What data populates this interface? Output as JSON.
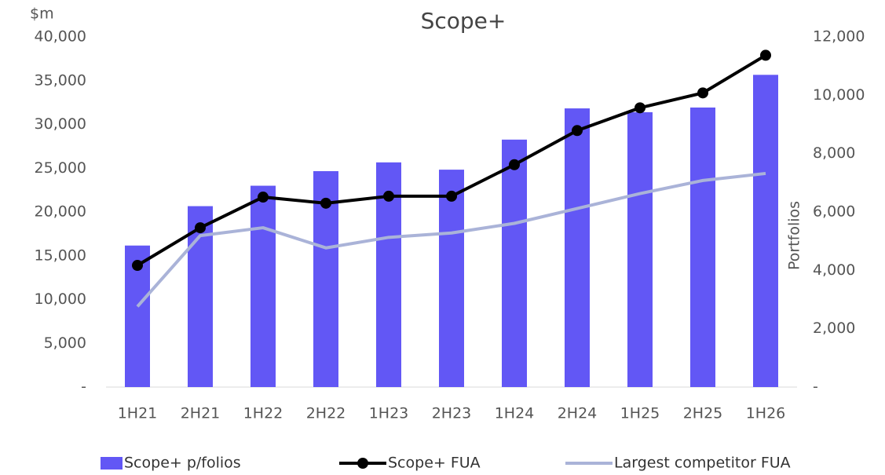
{
  "chart_data": {
    "type": "bar_line",
    "title": "Scope+",
    "y_label": "$m",
    "y2_label": "Portfolios",
    "categories": [
      "1H21",
      "2H21",
      "1H22",
      "2H22",
      "1H23",
      "2H23",
      "1H24",
      "2H24",
      "1H25",
      "2H25",
      "1H26"
    ],
    "series": [
      {
        "name": "Scope+ p/folios",
        "type": "bar",
        "axis": "y2",
        "color": "#6257f5",
        "values": [
          4850,
          6200,
          6900,
          7400,
          7700,
          7450,
          8480,
          9550,
          9420,
          9580,
          10700
        ]
      },
      {
        "name": "Scope+ FUA",
        "type": "line",
        "color": "#000000",
        "marker": true,
        "values": [
          13900,
          18200,
          21700,
          21000,
          21800,
          21800,
          25400,
          29300,
          31900,
          33600,
          37900
        ]
      },
      {
        "name": "Largest competitor FUA",
        "type": "line",
        "color": "#aab3d8",
        "marker": false,
        "values": [
          9200,
          17300,
          18200,
          15900,
          17100,
          17600,
          18700,
          20400,
          22100,
          23600,
          24400
        ]
      }
    ],
    "ylim": [
      0,
      40000
    ],
    "yticks": [
      {
        "value": 0,
        "label": "-"
      },
      {
        "value": 5000,
        "label": "5,000"
      },
      {
        "value": 10000,
        "label": "10,000"
      },
      {
        "value": 15000,
        "label": "15,000"
      },
      {
        "value": 20000,
        "label": "20,000"
      },
      {
        "value": 25000,
        "label": "25,000"
      },
      {
        "value": 30000,
        "label": "30,000"
      },
      {
        "value": 35000,
        "label": "35,000"
      },
      {
        "value": 40000,
        "label": "40,000"
      }
    ],
    "y2lim": [
      0,
      12000
    ],
    "y2ticks": [
      {
        "value": 0,
        "label": "-"
      },
      {
        "value": 2000,
        "label": "2,000"
      },
      {
        "value": 4000,
        "label": "4,000"
      },
      {
        "value": 6000,
        "label": "6,000"
      },
      {
        "value": 8000,
        "label": "8,000"
      },
      {
        "value": 10000,
        "label": "10,000"
      },
      {
        "value": 12000,
        "label": "12,000"
      }
    ],
    "legend": "bottom"
  }
}
